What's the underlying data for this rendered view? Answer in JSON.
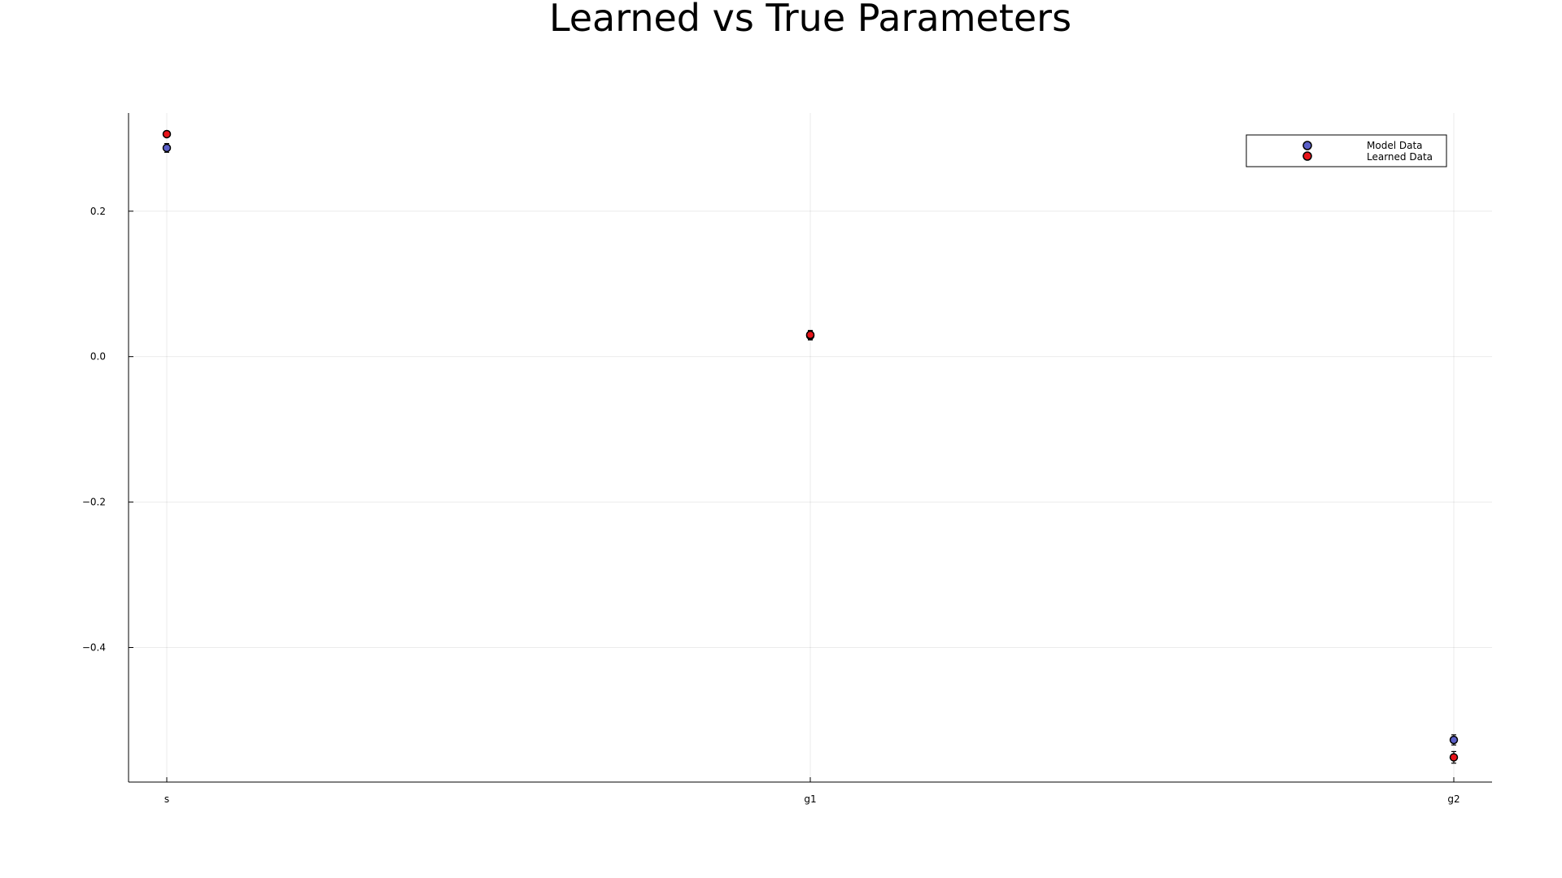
{
  "chart_data": {
    "type": "scatter",
    "title": "Learned vs True Parameters",
    "xlabel": "",
    "ylabel": "",
    "categories": [
      "s",
      "g1",
      "g2"
    ],
    "ylim": [
      -0.585,
      0.335
    ],
    "yticks": [
      0.2,
      0.0,
      -0.2,
      -0.4
    ],
    "ytick_labels": [
      "0.2",
      "0.0",
      "−0.2",
      "−0.4"
    ],
    "grid": true,
    "legend_position": "top-right",
    "series": [
      {
        "name": "Model Data",
        "color": "#5a5fc8",
        "values": [
          0.287,
          0.029,
          -0.527
        ],
        "errors": [
          0.006,
          0.006,
          0.007
        ]
      },
      {
        "name": "Learned Data",
        "color": "#e8141a",
        "values": [
          0.306,
          0.03,
          -0.551
        ],
        "errors": [
          0.004,
          0.006,
          0.008
        ]
      }
    ]
  }
}
